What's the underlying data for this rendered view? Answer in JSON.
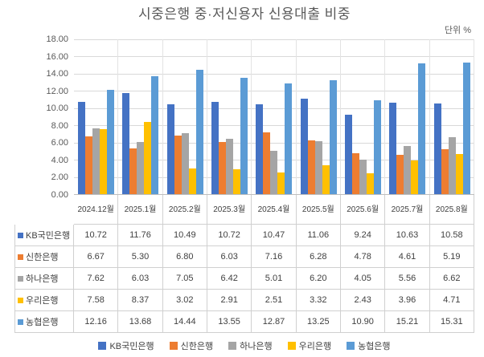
{
  "title": "시중은행 중·저신용자 신용대출 비중",
  "unit_label": "단위 %",
  "chart_data": {
    "type": "bar",
    "title": "시중은행 중·저신용자 신용대출 비중",
    "unit": "단위 %",
    "categories": [
      "2024.12월",
      "2025.1월",
      "2025.2월",
      "2025.3월",
      "2025.4월",
      "2025.5월",
      "2025.6월",
      "2025.7월",
      "2025.8월"
    ],
    "series": [
      {
        "name": "KB국민은행",
        "color": "#4472C4",
        "values": [
          10.72,
          11.76,
          10.49,
          10.72,
          10.47,
          11.06,
          9.24,
          10.63,
          10.58
        ]
      },
      {
        "name": "신한은행",
        "color": "#ED7D31",
        "values": [
          6.67,
          5.3,
          6.8,
          6.03,
          7.16,
          6.28,
          4.78,
          4.61,
          5.19
        ]
      },
      {
        "name": "하나은행",
        "color": "#A5A5A5",
        "values": [
          7.62,
          6.03,
          7.05,
          6.42,
          5.01,
          6.2,
          4.05,
          5.56,
          6.62
        ]
      },
      {
        "name": "우리은행",
        "color": "#FFC000",
        "values": [
          7.58,
          8.37,
          3.02,
          2.91,
          2.51,
          3.32,
          2.43,
          3.96,
          4.71
        ]
      },
      {
        "name": "농협은행",
        "color": "#5B9BD5",
        "values": [
          12.16,
          13.68,
          14.44,
          13.55,
          12.87,
          13.25,
          10.9,
          15.21,
          15.31
        ]
      }
    ],
    "ylim": [
      0,
      18
    ],
    "ytick_step": 2,
    "yticks": [
      "18.00",
      "16.00",
      "14.00",
      "12.00",
      "10.00",
      "8.00",
      "6.00",
      "4.00",
      "2.00",
      "0.00"
    ],
    "grid": true,
    "data_table_shown": true,
    "legend_position": "bottom",
    "value_decimals": 2
  }
}
